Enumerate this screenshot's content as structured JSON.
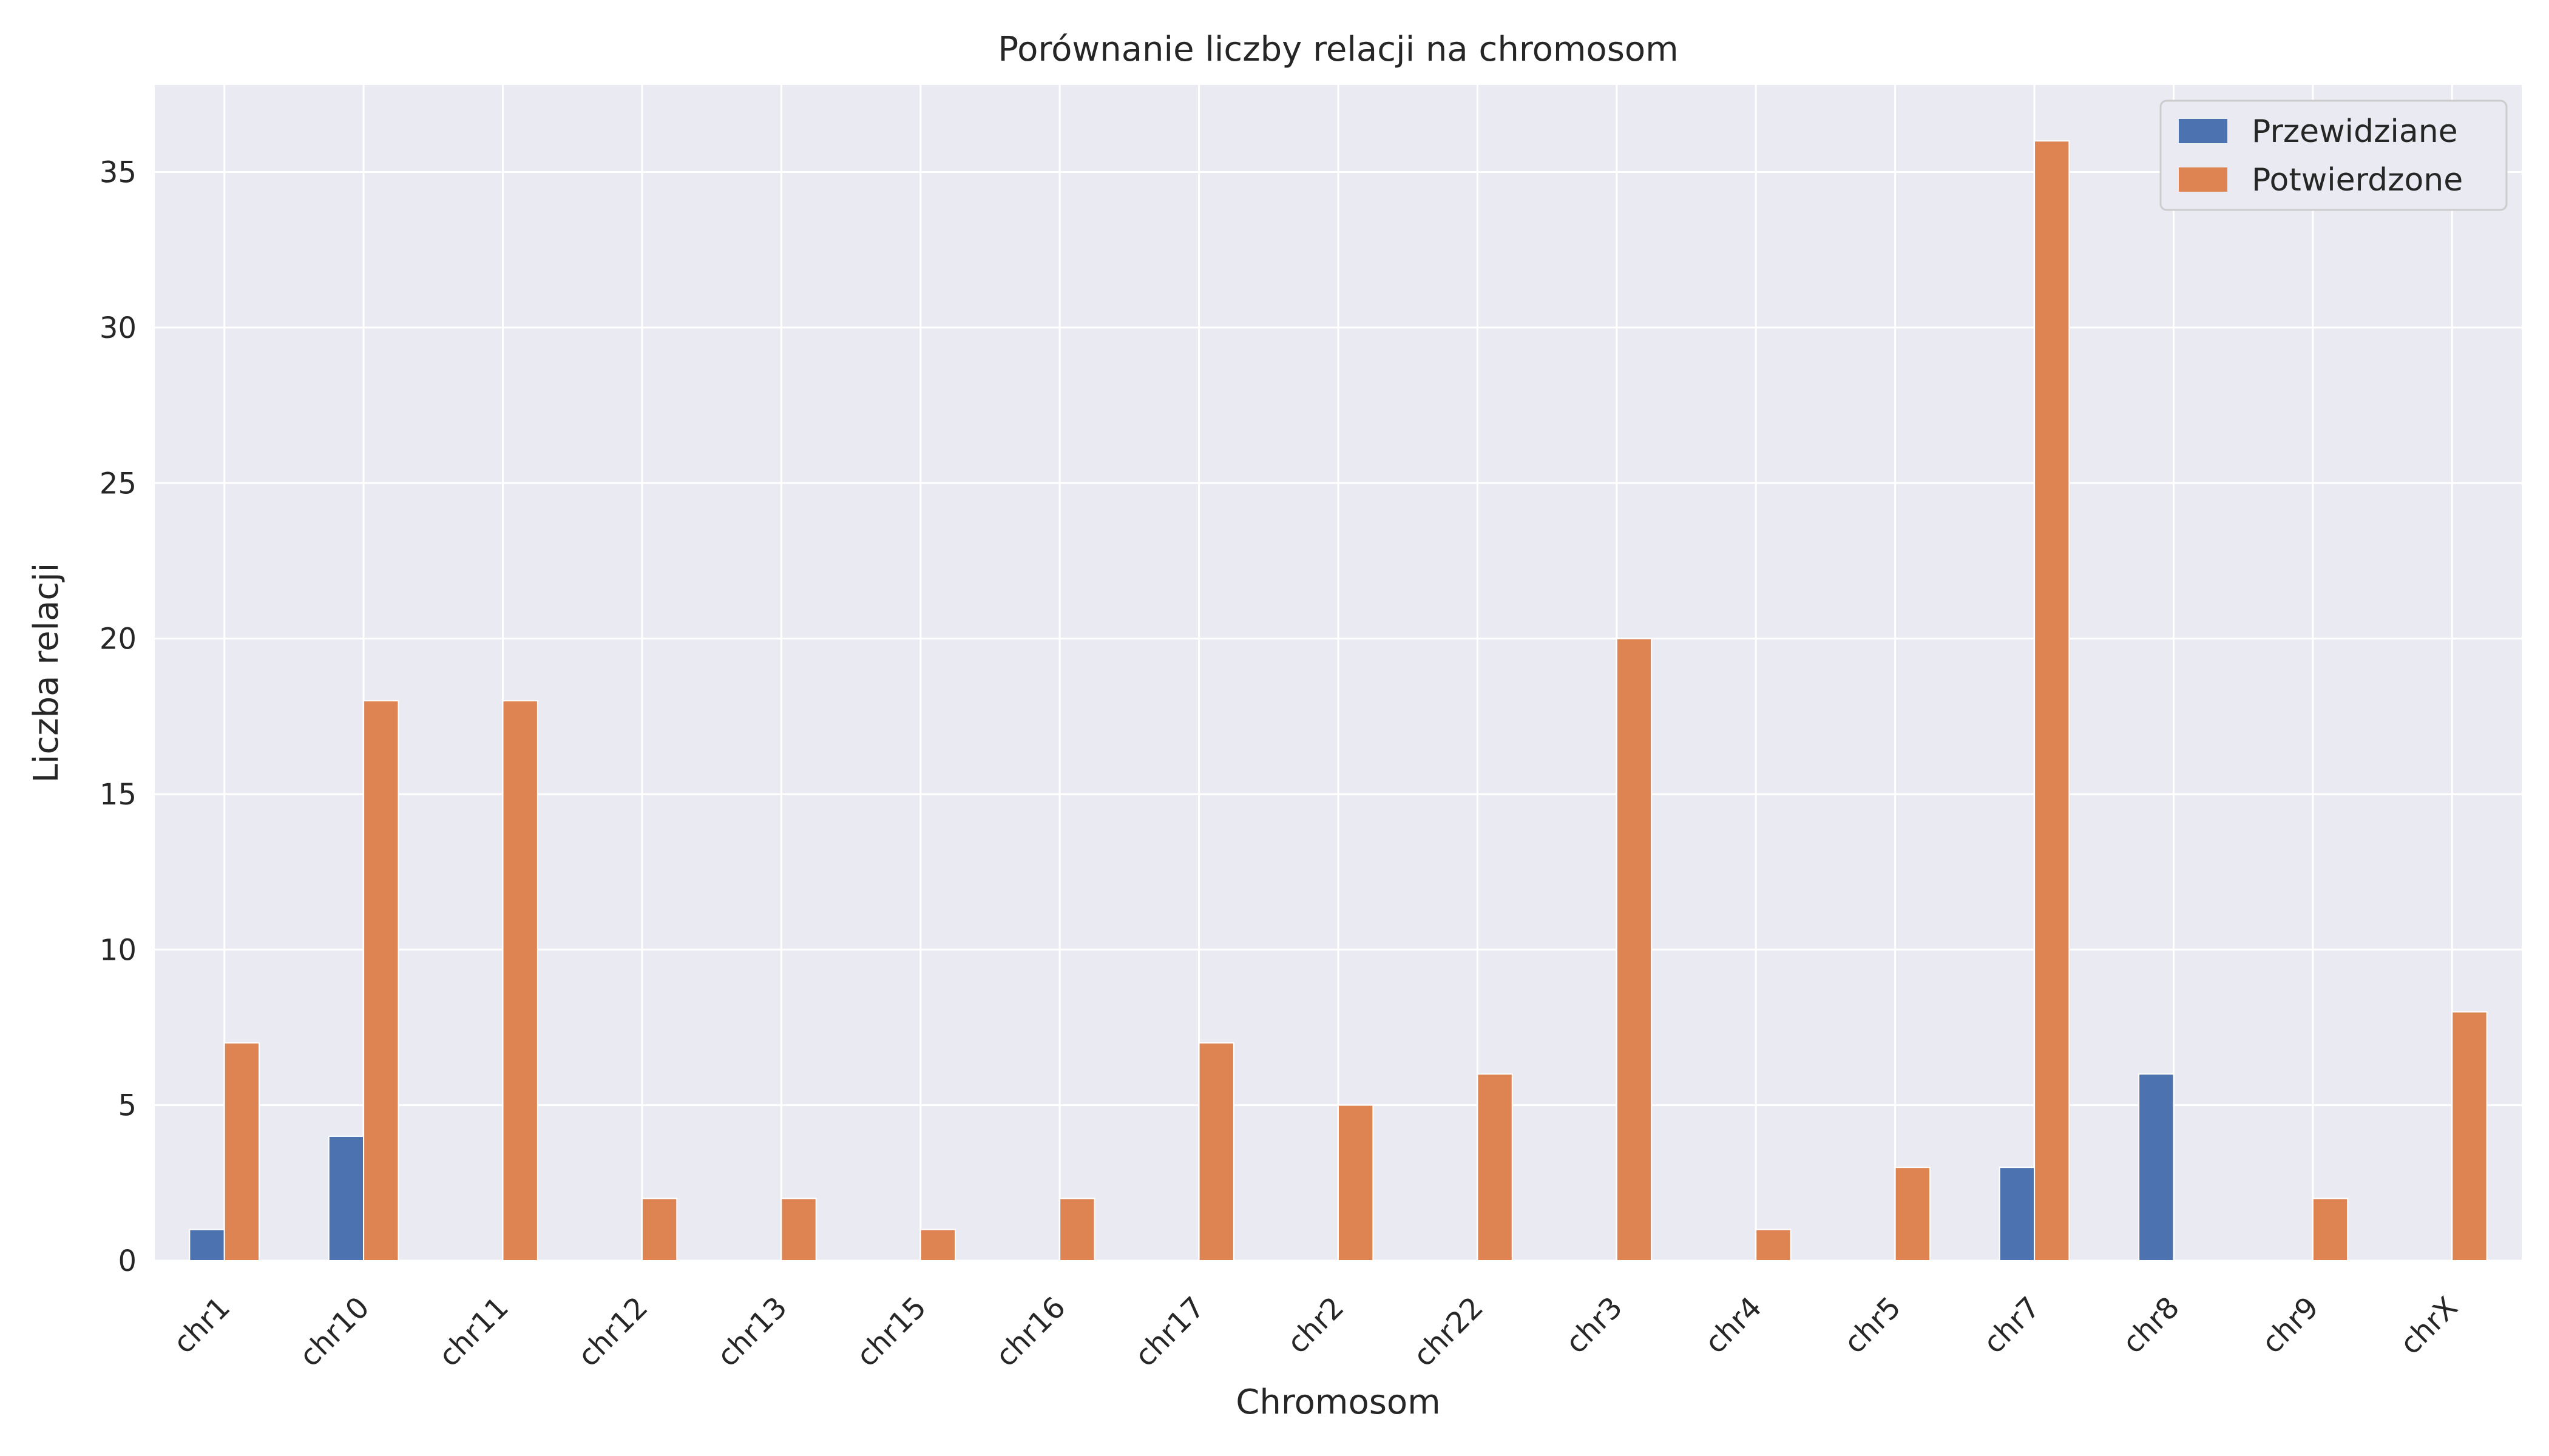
{
  "chart_data": {
    "type": "bar",
    "title": "Porównanie liczby relacji na chromosom",
    "xlabel": "Chromosom",
    "ylabel": "Liczba relacji",
    "categories": [
      "chr1",
      "chr10",
      "chr11",
      "chr12",
      "chr13",
      "chr15",
      "chr16",
      "chr17",
      "chr2",
      "chr22",
      "chr3",
      "chr4",
      "chr5",
      "chr7",
      "chr8",
      "chr9",
      "chrX"
    ],
    "series": [
      {
        "name": "Przewidziane",
        "color": "#4c72b0",
        "values": [
          1,
          4,
          0,
          0,
          0,
          0,
          0,
          0,
          0,
          0,
          0,
          0,
          0,
          3,
          6,
          0,
          0
        ]
      },
      {
        "name": "Potwierdzone",
        "color": "#dd8452",
        "values": [
          7,
          18,
          18,
          2,
          2,
          1,
          2,
          7,
          5,
          6,
          20,
          1,
          3,
          36,
          0,
          2,
          8
        ]
      }
    ],
    "ylim": [
      0,
      37.8
    ],
    "yticks": [
      0,
      5,
      10,
      15,
      20,
      25,
      30,
      35
    ],
    "grid": true,
    "legend_position": "top-right",
    "background_color": "#eaeaf2",
    "xtick_rotation": 45
  }
}
